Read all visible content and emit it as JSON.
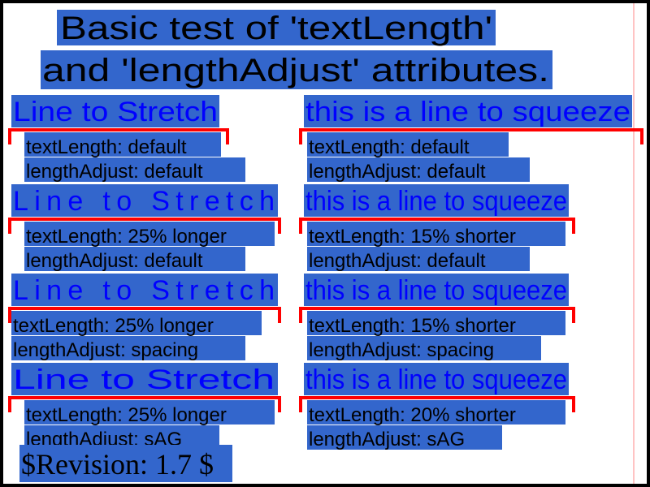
{
  "title": {
    "line1": "Basic test of 'textLength'",
    "line2": "and 'lengthAdjust' attributes."
  },
  "tests": [
    {
      "text": "Line to Stretch",
      "line1": "textLength: default",
      "line2": "lengthAdjust: default"
    },
    {
      "text": "this is a line to squeeze",
      "line1": "textLength: default",
      "line2": "lengthAdjust: default"
    },
    {
      "text": "Line to Stretch",
      "line1": "textLength: 25% longer",
      "line2": "lengthAdjust: default"
    },
    {
      "text": "this is a line to squeeze",
      "line1": "textLength: 15% shorter",
      "line2": "lengthAdjust: default"
    },
    {
      "text": "Line to Stretch",
      "line1": "textLength: 25% longer",
      "line2": "lengthAdjust: spacing"
    },
    {
      "text": "this is a line to squeeze",
      "line1": "textLength: 15% shorter",
      "line2": "lengthAdjust: spacing"
    },
    {
      "text": "Line to Stretch",
      "line1": "textLength: 25% longer",
      "line2": "lengthAdjust: sAG"
    },
    {
      "text": "this is a line to squeeze",
      "line1": "textLength: 20% shorter",
      "line2": "lengthAdjust: sAG"
    }
  ],
  "revision": "$Revision: 1.7 $",
  "colors": {
    "highlight": "#3366cc",
    "test_text": "#0000ff",
    "bracket": "#ff0000",
    "frame": "#000000",
    "margin_line": "#ff8888"
  }
}
